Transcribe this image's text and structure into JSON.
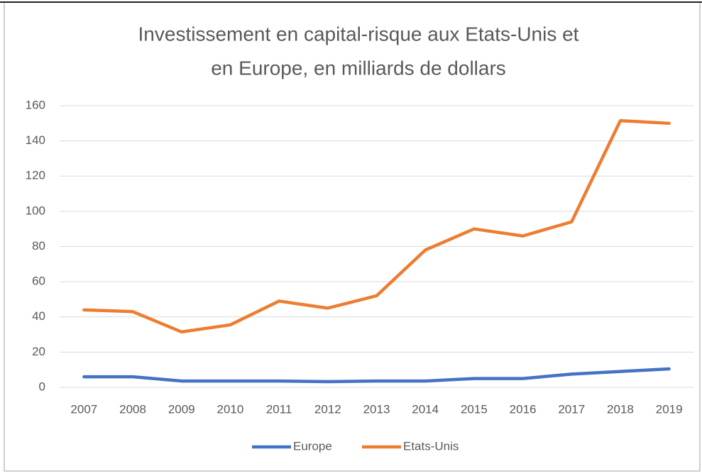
{
  "chart_data": {
    "type": "line",
    "title": [
      "Investissement en capital-risque aux Etats-Unis et",
      "en Europe, en milliards de dollars"
    ],
    "categories": [
      "2007",
      "2008",
      "2009",
      "2010",
      "2011",
      "2012",
      "2013",
      "2014",
      "2015",
      "2016",
      "2017",
      "2018",
      "2019"
    ],
    "series": [
      {
        "name": "Europe",
        "color": "#4472c4",
        "values": [
          6,
          6,
          3.6,
          3.6,
          3.6,
          3.2,
          3.6,
          3.6,
          5,
          5,
          7.5,
          9,
          10.5
        ]
      },
      {
        "name": "Etats-Unis",
        "color": "#ed7d31",
        "values": [
          44,
          43,
          31.5,
          35.5,
          49,
          45,
          52,
          78,
          90,
          86,
          94,
          151.5,
          150
        ]
      }
    ],
    "ylim": [
      0,
      160
    ],
    "yticks": [
      0,
      20,
      40,
      60,
      80,
      100,
      120,
      140,
      160
    ],
    "grid": true,
    "legend": "bottom"
  }
}
